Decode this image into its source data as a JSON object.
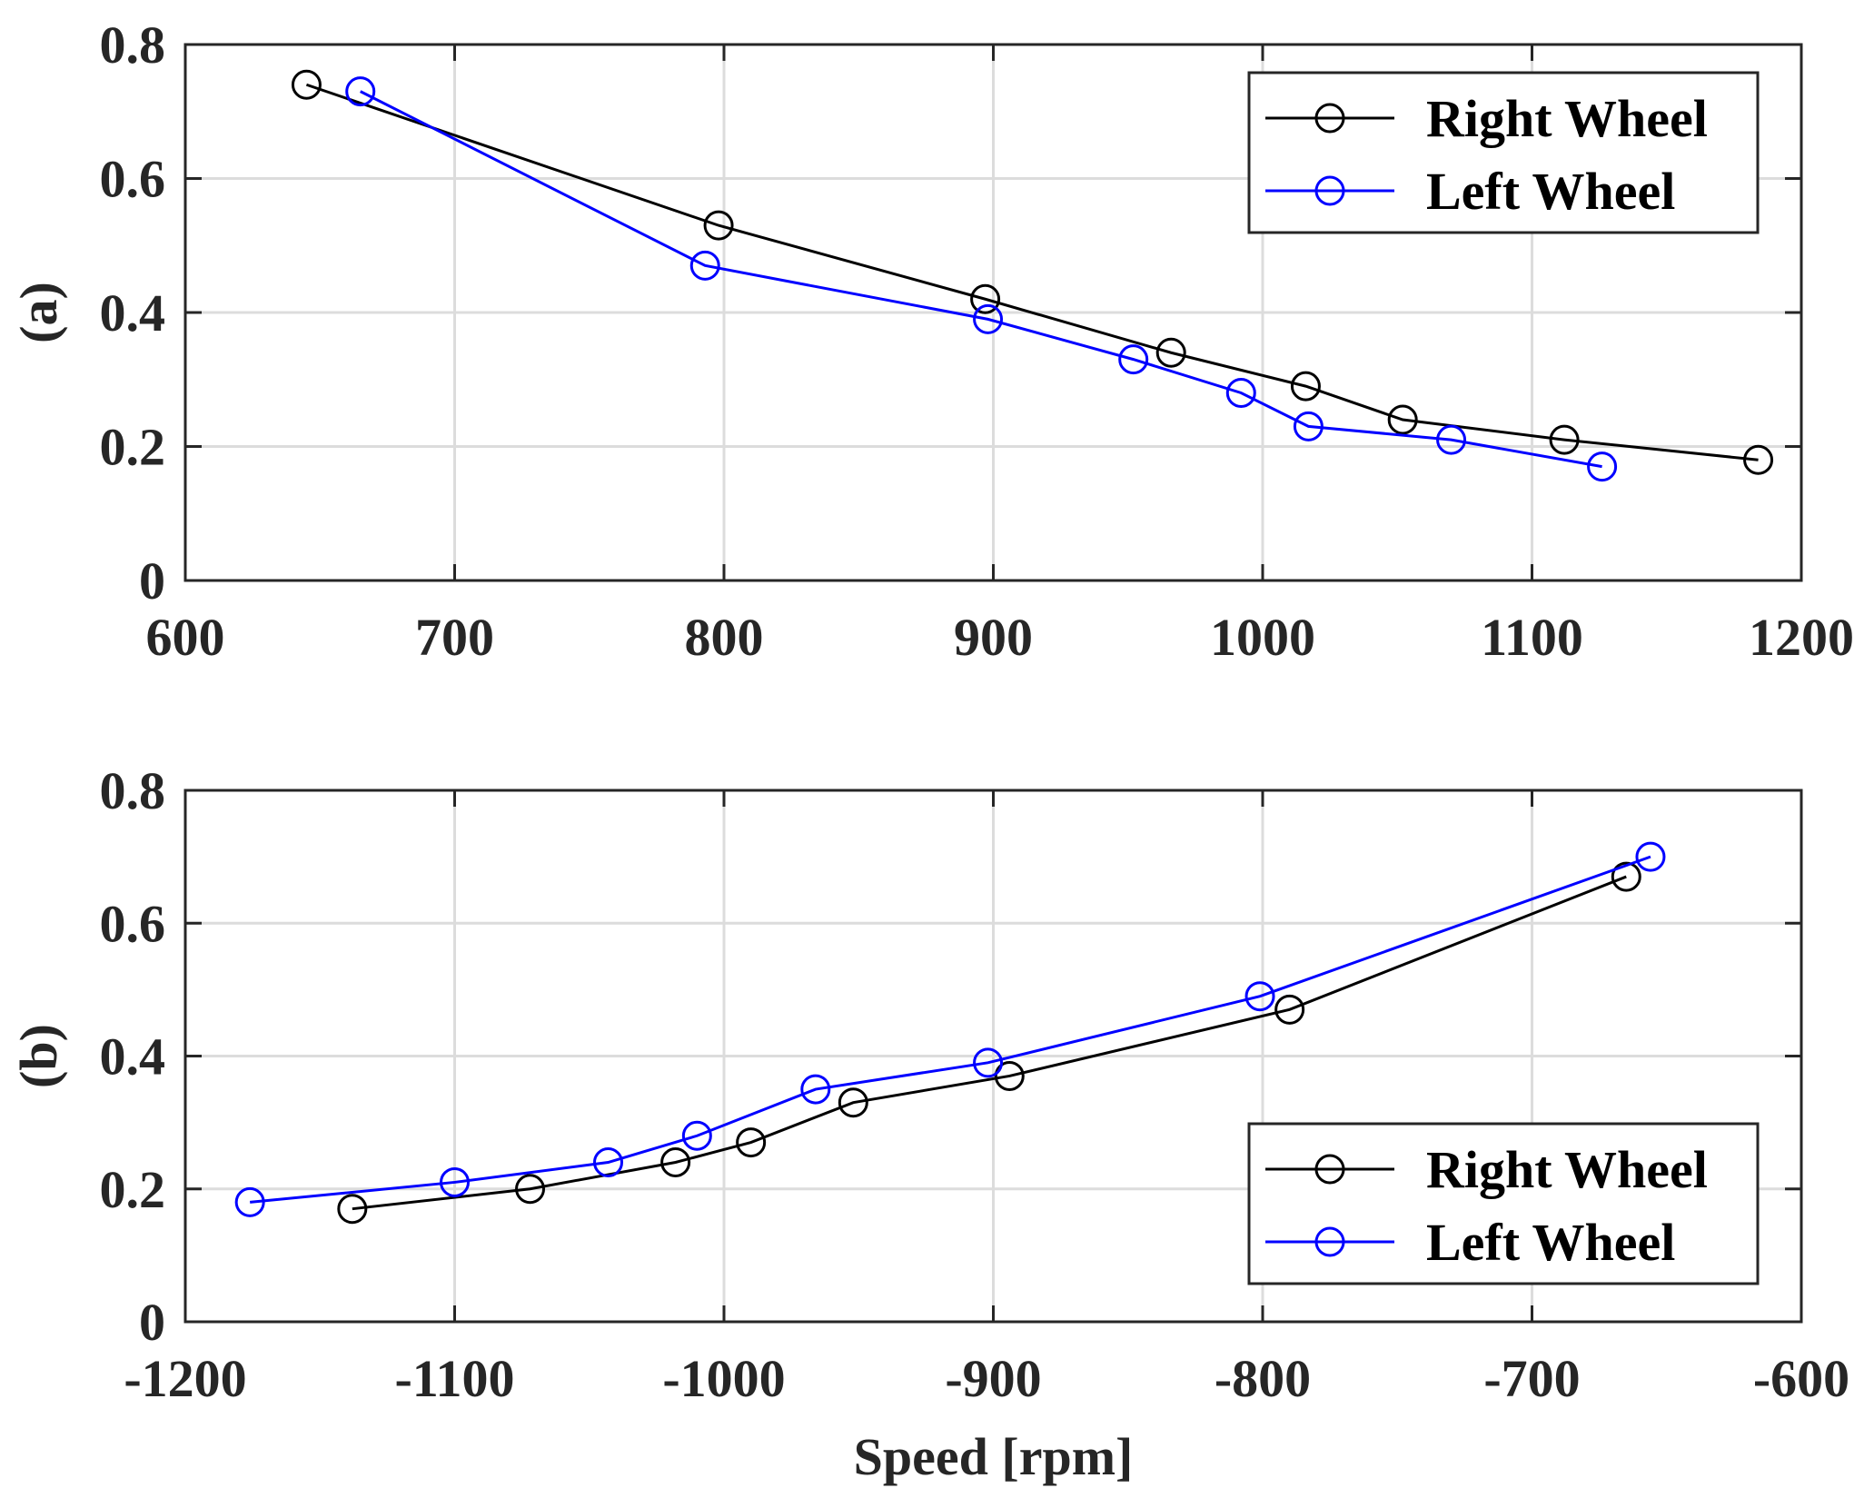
{
  "chart_data": [
    {
      "type": "line",
      "panel_label": "(a)",
      "xlabel": "",
      "ylabel": "(a)",
      "xlim": [
        600,
        1200
      ],
      "ylim": [
        0,
        0.8
      ],
      "xticks": [
        "600",
        "700",
        "800",
        "900",
        "1000",
        "1100",
        "1200"
      ],
      "yticks": [
        "0",
        "0.2",
        "0.4",
        "0.6",
        "0.8"
      ],
      "grid": true,
      "legend_position": "top-right",
      "series": [
        {
          "name": "Right Wheel",
          "color": "#000000",
          "marker": "circle",
          "x": [
            645,
            798,
            897,
            966,
            1016,
            1052,
            1112,
            1184
          ],
          "y": [
            0.74,
            0.53,
            0.42,
            0.34,
            0.29,
            0.24,
            0.21,
            0.18
          ]
        },
        {
          "name": "Left Wheel",
          "color": "#0000ff",
          "marker": "circle",
          "x": [
            665,
            793,
            898,
            952,
            992,
            1017,
            1070,
            1126
          ],
          "y": [
            0.73,
            0.47,
            0.39,
            0.33,
            0.28,
            0.23,
            0.21,
            0.17
          ]
        }
      ]
    },
    {
      "type": "line",
      "panel_label": "(b)",
      "xlabel": "Speed [rpm]",
      "ylabel": "(b)",
      "xlim": [
        -1200,
        -600
      ],
      "ylim": [
        0,
        0.8
      ],
      "xticks": [
        "-1200",
        "-1100",
        "-1000",
        "-900",
        "-800",
        "-700",
        "-600"
      ],
      "yticks": [
        "0",
        "0.2",
        "0.4",
        "0.6",
        "0.8"
      ],
      "grid": true,
      "legend_position": "bottom-right",
      "series": [
        {
          "name": "Right Wheel",
          "color": "#000000",
          "marker": "circle",
          "x": [
            -1138,
            -1072,
            -1018,
            -990,
            -952,
            -894,
            -790,
            -665
          ],
          "y": [
            0.17,
            0.2,
            0.24,
            0.27,
            0.33,
            0.37,
            0.47,
            0.67
          ]
        },
        {
          "name": "Left Wheel",
          "color": "#0000ff",
          "marker": "circle",
          "x": [
            -1176,
            -1100,
            -1043,
            -1010,
            -966,
            -902,
            -801,
            -656
          ],
          "y": [
            0.18,
            0.21,
            0.24,
            0.28,
            0.35,
            0.39,
            0.49,
            0.7
          ]
        }
      ]
    }
  ]
}
